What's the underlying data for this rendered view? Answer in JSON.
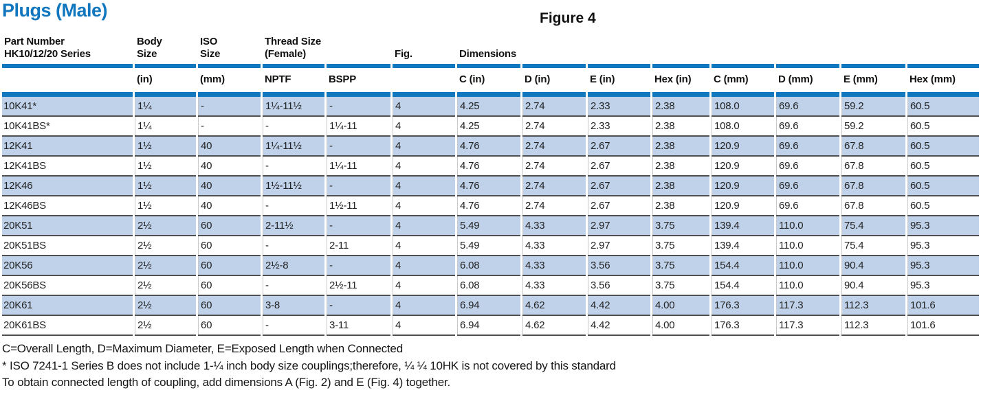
{
  "title": "Plugs (Male)",
  "figure_label": "Figure 4",
  "colors": {
    "accent_blue": "#1177bf",
    "band_blue": "#bfd2ea",
    "row_divider_gray": "#4f4f52",
    "title_blue": "#1177bf"
  },
  "table": {
    "group_headers": {
      "part_number": "Part Number\nHK10/12/20 Series",
      "body_size": "Body\nSize",
      "iso_size": "ISO\nSize",
      "thread_size": "Thread Size\n(Female)",
      "fig": "Fig.",
      "dimensions": "Dimensions"
    },
    "sub_headers": [
      "",
      "(in)",
      "(mm)",
      "NPTF",
      "BSPP",
      "",
      "C (in)",
      "D (in)",
      "E (in)",
      "Hex (in)",
      "C (mm)",
      "D (mm)",
      "E (mm)",
      "Hex (mm)"
    ],
    "col_keys": [
      "part-number",
      "body-size-in",
      "iso-size-mm",
      "nptf",
      "bspp",
      "fig",
      "c-in",
      "d-in",
      "e-in",
      "hex-in",
      "c-mm",
      "d-mm",
      "e-mm",
      "hex-mm"
    ],
    "rows": [
      [
        "10K41*",
        "1¼",
        "-",
        "1¼-11½",
        "-",
        "4",
        "4.25",
        "2.74",
        "2.33",
        "2.38",
        "108.0",
        "69.6",
        "59.2",
        "60.5"
      ],
      [
        "10K41BS*",
        "1¼",
        "-",
        "-",
        "1¼-11",
        "4",
        "4.25",
        "2.74",
        "2.33",
        "2.38",
        "108.0",
        "69.6",
        "59.2",
        "60.5"
      ],
      [
        "12K41",
        "1½",
        "40",
        "1¼-11½",
        "-",
        "4",
        "4.76",
        "2.74",
        "2.67",
        "2.38",
        "120.9",
        "69.6",
        "67.8",
        "60.5"
      ],
      [
        "12K41BS",
        "1½",
        "40",
        "-",
        "1¼-11",
        "4",
        "4.76",
        "2.74",
        "2.67",
        "2.38",
        "120.9",
        "69.6",
        "67.8",
        "60.5"
      ],
      [
        "12K46",
        "1½",
        "40",
        "1½-11½",
        "-",
        "4",
        "4.76",
        "2.74",
        "2.67",
        "2.38",
        "120.9",
        "69.6",
        "67.8",
        "60.5"
      ],
      [
        "12K46BS",
        "1½",
        "40",
        "-",
        "1½-11",
        "4",
        "4.76",
        "2.74",
        "2.67",
        "2.38",
        "120.9",
        "69.6",
        "67.8",
        "60.5"
      ],
      [
        "20K51",
        "2½",
        "60",
        "2-11½",
        "-",
        "4",
        "5.49",
        "4.33",
        "2.97",
        "3.75",
        "139.4",
        "110.0",
        "75.4",
        "95.3"
      ],
      [
        "20K51BS",
        "2½",
        "60",
        "-",
        "2-11",
        "4",
        "5.49",
        "4.33",
        "2.97",
        "3.75",
        "139.4",
        "110.0",
        "75.4",
        "95.3"
      ],
      [
        "20K56",
        "2½",
        "60",
        "2½-8",
        "-",
        "4",
        "6.08",
        "4.33",
        "3.56",
        "3.75",
        "154.4",
        "110.0",
        "90.4",
        "95.3"
      ],
      [
        "20K56BS",
        "2½",
        "60",
        "-",
        "2½-11",
        "4",
        "6.08",
        "4.33",
        "3.56",
        "3.75",
        "154.4",
        "110.0",
        "90.4",
        "95.3"
      ],
      [
        "20K61",
        "2½",
        "60",
        "3-8",
        "-",
        "4",
        "6.94",
        "4.62",
        "4.42",
        "4.00",
        "176.3",
        "117.3",
        "112.3",
        "101.6"
      ],
      [
        "20K61BS",
        "2½",
        "60",
        "-",
        "3-11",
        "4",
        "6.94",
        "4.62",
        "4.42",
        "4.00",
        "176.3",
        "117.3",
        "112.3",
        "101.6"
      ]
    ]
  },
  "notes": [
    "C=Overall Length, D=Maximum Diameter, E=Exposed Length when Connected",
    "* ISO 7241-1 Series B does not include 1-¼ inch body size couplings;therefore, ¼ ¼ 10HK is not covered by this standard",
    "To obtain connected length of coupling, add dimensions A (Fig. 2) and E (Fig. 4) together."
  ]
}
